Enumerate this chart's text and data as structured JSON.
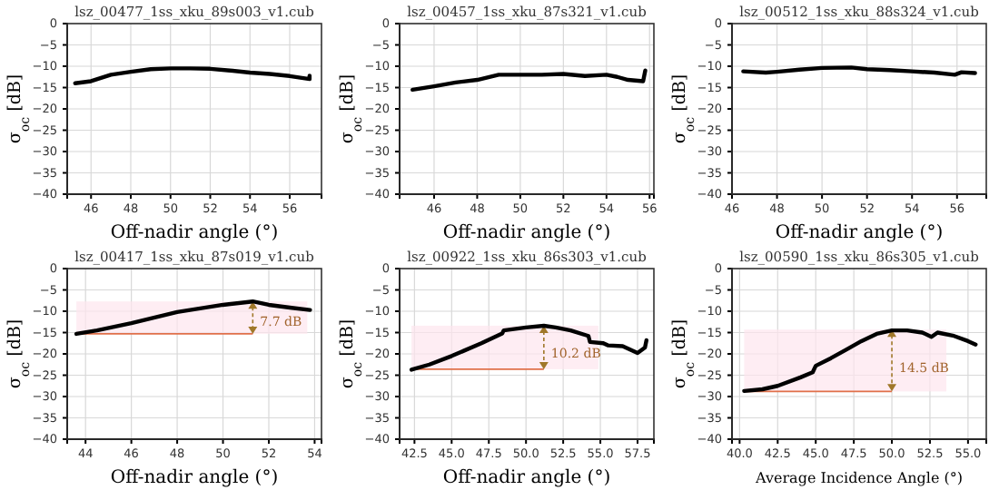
{
  "chart_data": [
    {
      "type": "line",
      "title": "lsz_00477_1ss_xku_89s003_v1.cub",
      "xlabel": "Off-nadir angle (°)",
      "ylabel": "σ$_{oc}$ [dB]",
      "grid": true,
      "xlim": [
        44.8,
        57.6
      ],
      "xticks": [
        46,
        48,
        50,
        52,
        54,
        56
      ],
      "ylim": [
        -40,
        0
      ],
      "yticks": [
        -40,
        -35,
        -30,
        -25,
        -20,
        -15,
        -10,
        -5,
        0
      ],
      "series": [
        {
          "color": "#000000",
          "x": [
            45.2,
            46,
            47,
            48,
            49,
            50,
            51,
            52,
            53,
            54,
            55,
            56,
            57,
            57
          ],
          "values": [
            -14,
            -13.5,
            -12,
            -11.3,
            -10.7,
            -10.5,
            -10.5,
            -10.6,
            -11,
            -11.5,
            -11.8,
            -12.3,
            -13,
            -12.2
          ]
        }
      ]
    },
    {
      "type": "line",
      "title": "lsz_00457_1ss_xku_87s321_v1.cub",
      "xlabel": "Off-nadir angle (°)",
      "ylabel": "σ$_{oc}$ [dB]",
      "grid": true,
      "xlim": [
        44.4,
        56.2
      ],
      "xticks": [
        46,
        48,
        50,
        52,
        54,
        56
      ],
      "ylim": [
        -40,
        0
      ],
      "yticks": [
        -40,
        -35,
        -30,
        -25,
        -20,
        -15,
        -10,
        -5,
        0
      ],
      "series": [
        {
          "color": "#000000",
          "x": [
            45,
            46,
            47,
            48,
            49,
            50,
            51,
            52,
            53,
            54,
            54.5,
            55,
            55.7,
            55.8
          ],
          "values": [
            -15.5,
            -14.7,
            -13.8,
            -13.2,
            -12,
            -12,
            -12,
            -11.8,
            -12.3,
            -12,
            -12.5,
            -13.2,
            -13.5,
            -11
          ]
        }
      ]
    },
    {
      "type": "line",
      "title": "lsz_00512_1ss_xku_88s324_v1.cub",
      "xlabel": "Off-nadir angle (°)",
      "ylabel": "σ$_{oc}$ [dB]",
      "grid": true,
      "xlim": [
        46,
        57.3
      ],
      "xticks": [
        46,
        48,
        50,
        52,
        54,
        56
      ],
      "ylim": [
        -40,
        0
      ],
      "yticks": [
        -40,
        -35,
        -30,
        -25,
        -20,
        -15,
        -10,
        -5,
        0
      ],
      "series": [
        {
          "color": "#000000",
          "x": [
            46.5,
            47.5,
            48,
            49,
            50,
            51.3,
            52,
            53,
            54,
            55,
            55.9,
            56.2,
            56.8
          ],
          "values": [
            -11.2,
            -11.5,
            -11.3,
            -10.8,
            -10.4,
            -10.3,
            -10.7,
            -10.9,
            -11.2,
            -11.5,
            -12,
            -11.4,
            -11.6
          ]
        }
      ]
    },
    {
      "type": "line",
      "title": "lsz_00417_1ss_xku_87s019_v1.cub",
      "xlabel": "Off-nadir angle (°)",
      "ylabel": "σ$_{oc}$ [dB]",
      "grid": true,
      "xlim": [
        43.2,
        54.3
      ],
      "xticks": [
        44,
        46,
        48,
        50,
        52,
        54
      ],
      "ylim": [
        -40,
        0
      ],
      "yticks": [
        -40,
        -35,
        -30,
        -25,
        -20,
        -15,
        -10,
        -5,
        0
      ],
      "bands": [
        {
          "axis": "y",
          "from": -15.3,
          "to": -7.7,
          "color": "#fde6ee"
        }
      ],
      "annotations": [
        "7.7 dB"
      ],
      "series": [
        {
          "color": "#000000",
          "x": [
            43.6,
            44.5,
            46,
            48,
            50,
            51.3,
            52,
            53,
            53.8
          ],
          "values": [
            -15.3,
            -14.5,
            -12.8,
            -10.2,
            -8.5,
            -7.7,
            -8.5,
            -9.2,
            -9.7
          ]
        }
      ]
    },
    {
      "type": "line",
      "title": "lsz_00922_1ss_xku_86s303_v1.cub",
      "xlabel": "Off-nadir angle (°)",
      "ylabel": "σ$_{oc}$ [dB]",
      "grid": true,
      "xlim": [
        41.5,
        58.6
      ],
      "xticks": [
        {
          "value": 42.5,
          "label": "42.5"
        },
        {
          "value": 45,
          "label": "45.0"
        },
        {
          "value": 47.5,
          "label": "47.5"
        },
        {
          "value": 50,
          "label": "50.0"
        },
        {
          "value": 52.5,
          "label": "52.5"
        },
        {
          "value": 55,
          "label": "55.0"
        },
        {
          "value": 57.5,
          "label": "57.5"
        }
      ],
      "ylim": [
        -40,
        0
      ],
      "yticks": [
        -40,
        -35,
        -30,
        -25,
        -20,
        -15,
        -10,
        -5,
        0
      ],
      "bands": [
        {
          "axis": "y",
          "from": -23.6,
          "to": -13.4,
          "color": "#fde6ee"
        }
      ],
      "annotations": [
        "10.2 dB"
      ],
      "series": [
        {
          "color": "#000000",
          "x": [
            42.3,
            43.5,
            45,
            47,
            48.4,
            48.5,
            50,
            51.2,
            52,
            53,
            54.2,
            54.3,
            55.2,
            55.5,
            56.5,
            57.5,
            58,
            58.1
          ],
          "values": [
            -23.7,
            -22.5,
            -20.5,
            -17.5,
            -15.2,
            -14.5,
            -13.8,
            -13.4,
            -13.8,
            -14.5,
            -15.8,
            -17.2,
            -17.5,
            -18,
            -18.2,
            -19.8,
            -18.5,
            -16.8
          ]
        }
      ]
    },
    {
      "type": "line",
      "title": "lsz_00590_1ss_xku_86s305_v1.cub",
      "xlabel": "Average Incidence Angle (°)",
      "ylabel": "σ$_{oc}$ [dB]",
      "grid": true,
      "xlim": [
        39.5,
        56.2
      ],
      "xticks": [
        {
          "value": 40,
          "label": "40.0"
        },
        {
          "value": 42.5,
          "label": "42.5"
        },
        {
          "value": 45,
          "label": "45.0"
        },
        {
          "value": 47.5,
          "label": "47.5"
        },
        {
          "value": 50,
          "label": "50.0"
        },
        {
          "value": 52.5,
          "label": "52.5"
        },
        {
          "value": 55,
          "label": "55.0"
        }
      ],
      "ylim": [
        -40,
        0
      ],
      "yticks": [
        -40,
        -35,
        -30,
        -25,
        -20,
        -15,
        -10,
        -5,
        0
      ],
      "bands": [
        {
          "axis": "y",
          "from": -28.8,
          "to": -14.3,
          "color": "#fde6ee"
        }
      ],
      "annotations": [
        "14.5 dB"
      ],
      "series": [
        {
          "color": "#000000",
          "x": [
            40.3,
            41.5,
            42.5,
            44,
            44.8,
            45,
            46,
            47,
            48,
            49,
            50,
            51,
            52,
            52.6,
            53,
            54,
            55,
            55.5
          ],
          "values": [
            -28.7,
            -28.3,
            -27.5,
            -25.5,
            -24.3,
            -22.8,
            -21,
            -19,
            -17,
            -15.3,
            -14.5,
            -14.5,
            -15,
            -16,
            -15,
            -15.7,
            -17,
            -17.8
          ]
        }
      ]
    }
  ]
}
